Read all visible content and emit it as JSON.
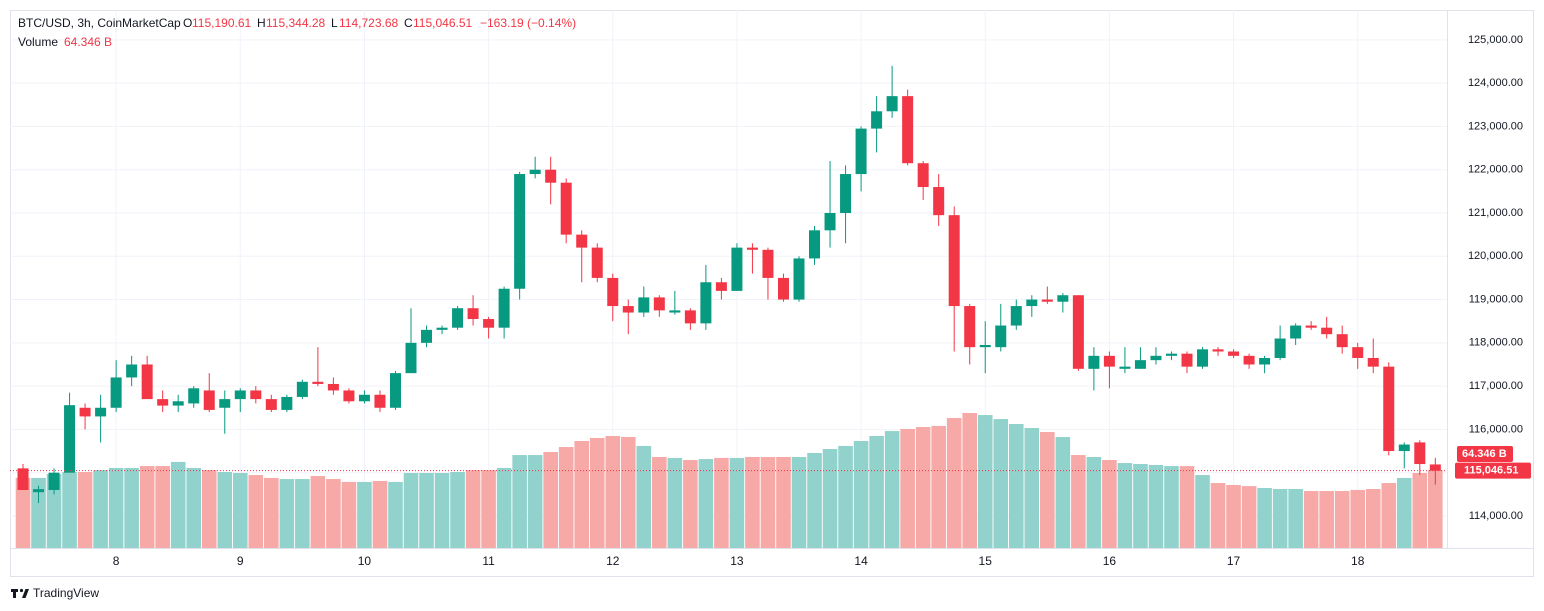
{
  "chart_data": {
    "type": "candlestick",
    "header": {
      "symbol": "BTC/USD, 3h, CoinMarketCap",
      "open_key": "O",
      "open": "115,190.61",
      "high_key": "H",
      "high": "115,344.28",
      "low_key": "L",
      "low": "114,723.68",
      "close_key": "C",
      "close": "115,046.51",
      "change": "−163.19 (−0.14%)",
      "volume_key": "Volume",
      "volume": "64.346 B"
    },
    "categories": [
      null,
      null,
      null,
      null,
      null,
      null,
      "8",
      null,
      null,
      null,
      null,
      null,
      null,
      null,
      "9",
      null,
      null,
      null,
      null,
      null,
      null,
      null,
      "10",
      null,
      null,
      null,
      null,
      null,
      null,
      null,
      "11",
      null,
      null,
      null,
      null,
      null,
      null,
      null,
      "12",
      null,
      null,
      null,
      null,
      null,
      null,
      null,
      "13",
      null,
      null,
      null,
      null,
      null,
      null,
      null,
      "14",
      null,
      null,
      null,
      null,
      null,
      null,
      null,
      "15",
      null,
      null,
      null,
      null,
      null,
      null,
      null,
      "16",
      null,
      null,
      null,
      null,
      null,
      null,
      null,
      "17",
      null,
      null,
      null,
      null,
      null,
      null,
      null,
      "18",
      null,
      null,
      null,
      null,
      null
    ],
    "open": [
      115100,
      114550,
      114600,
      115000,
      116500,
      116300,
      116500,
      117200,
      117500,
      116700,
      116550,
      116600,
      116900,
      116500,
      116700,
      116900,
      116700,
      116450,
      116750,
      117100,
      117050,
      116900,
      116650,
      116800,
      116500,
      117300,
      118000,
      118300,
      118350,
      118800,
      118550,
      118350,
      119250,
      121900,
      122000,
      121700,
      120500,
      120200,
      119500,
      118850,
      118700,
      119050,
      118700,
      118750,
      118450,
      119400,
      119200,
      120200,
      120150,
      119500,
      119000,
      119950,
      120600,
      121000,
      121900,
      122950,
      123350,
      123700,
      122150,
      121600,
      120950,
      118850,
      117900,
      117900,
      118400,
      118850,
      119000,
      118950,
      119100,
      117400,
      117700,
      117400,
      117400,
      117600,
      117700,
      117750,
      117450,
      117850,
      117800,
      117700,
      117500,
      117650,
      118100,
      118400,
      118350,
      118200,
      117900,
      117650,
      117450,
      115500,
      115700,
      115190.61
    ],
    "high": [
      115200,
      114700,
      115100,
      116850,
      116600,
      116800,
      117600,
      117700,
      117700,
      116900,
      116800,
      117000,
      117300,
      116900,
      116950,
      117000,
      116800,
      116800,
      117150,
      117900,
      117200,
      116950,
      116900,
      116900,
      117350,
      118800,
      118400,
      118400,
      118850,
      119100,
      118600,
      119300,
      121950,
      122300,
      122300,
      121800,
      120600,
      120300,
      119600,
      119000,
      119300,
      119100,
      119200,
      118800,
      119800,
      119500,
      120300,
      120300,
      120200,
      119600,
      120000,
      120700,
      122200,
      122100,
      123000,
      123700,
      124400,
      123850,
      122200,
      121900,
      121150,
      118900,
      118500,
      118900,
      119000,
      119100,
      119300,
      119150,
      119100,
      117900,
      117800,
      117900,
      117900,
      117900,
      117800,
      117800,
      117900,
      117900,
      117850,
      117750,
      117700,
      118400,
      118450,
      118500,
      118600,
      118400,
      118000,
      118100,
      117550,
      115700,
      115750,
      115344.28
    ],
    "low": [
      114600,
      114300,
      114500,
      115000,
      116000,
      115700,
      116400,
      117000,
      116700,
      116400,
      116400,
      116500,
      116400,
      115900,
      116400,
      116600,
      116400,
      116400,
      116700,
      117000,
      116800,
      116600,
      116600,
      116400,
      116450,
      117300,
      117900,
      118200,
      118300,
      118400,
      118100,
      118100,
      119000,
      121800,
      121200,
      120300,
      119400,
      119400,
      118500,
      118200,
      118600,
      118600,
      118650,
      118300,
      118300,
      119000,
      119200,
      119600,
      119000,
      118950,
      118950,
      119800,
      120200,
      120300,
      121500,
      122400,
      123200,
      122100,
      121300,
      120700,
      117800,
      117500,
      117300,
      117800,
      118300,
      118600,
      118900,
      118700,
      117350,
      116900,
      116950,
      117300,
      117400,
      117500,
      117600,
      117300,
      117400,
      117700,
      117650,
      117400,
      117300,
      117600,
      117950,
      118300,
      118100,
      117750,
      117400,
      117300,
      115400,
      115100,
      114950,
      114723.68
    ],
    "close": [
      114600,
      114620,
      115000,
      116560,
      116300,
      116500,
      117200,
      117500,
      116700,
      116550,
      116650,
      116950,
      116450,
      116700,
      116900,
      116700,
      116450,
      116750,
      117100,
      117050,
      116900,
      116650,
      116800,
      116500,
      117300,
      118000,
      118300,
      118350,
      118800,
      118550,
      118350,
      119250,
      121900,
      122000,
      121700,
      120500,
      120200,
      119500,
      118850,
      118700,
      119050,
      118750,
      118750,
      118450,
      119400,
      119200,
      120200,
      120150,
      119500,
      119000,
      119950,
      120600,
      121000,
      121900,
      122950,
      123350,
      123700,
      122150,
      121600,
      120950,
      118850,
      117900,
      117950,
      118400,
      118850,
      119000,
      118950,
      119100,
      117400,
      117700,
      117450,
      117450,
      117600,
      117700,
      117750,
      117450,
      117850,
      117800,
      117700,
      117500,
      117650,
      118100,
      118400,
      118350,
      118200,
      117900,
      117650,
      117450,
      115500,
      115650,
      115200,
      115046.51
    ],
    "volume": [
      57.8,
      57.8,
      61,
      62.7,
      62.7,
      64.3,
      66,
      66,
      67.6,
      67.6,
      71,
      66,
      64.3,
      62.7,
      61.9,
      60.2,
      57.8,
      56.9,
      56.9,
      59.4,
      56.9,
      54.5,
      54.5,
      55.3,
      54.5,
      61.9,
      61.9,
      61.9,
      62.7,
      64.3,
      64.3,
      66,
      76.7,
      76.7,
      79.2,
      83.3,
      88.3,
      90.8,
      92.4,
      91.6,
      84.2,
      75.1,
      74.3,
      72.6,
      73.4,
      74.3,
      74.3,
      75.1,
      75.1,
      75.1,
      75.1,
      78.4,
      81.7,
      84.2,
      88.3,
      92.4,
      96.5,
      98.2,
      99.8,
      100.7,
      107.3,
      111.4,
      109.7,
      106.4,
      102.3,
      99,
      95.7,
      91.6,
      76.7,
      75.1,
      72.6,
      70.1,
      69.3,
      68.5,
      67.6,
      67.6,
      60.2,
      53.6,
      52,
      51.1,
      49.5,
      48.7,
      48.7,
      47,
      47,
      47,
      47.9,
      48.7,
      53.6,
      57.8,
      61.9,
      64.346
    ],
    "last_volume_label": "64.346 B",
    "last_close_label": "115,046.51",
    "up_color": "#089981",
    "down_color": "#f23645",
    "up_volume_color": "#92d2cc",
    "down_volume_color": "#f7a9a7",
    "ylim": [
      113260,
      125690
    ],
    "yticks": [
      {
        "value": 114000,
        "label": "114,000.00"
      },
      {
        "value": 115000,
        "label": "115,000.00"
      },
      {
        "value": 116000,
        "label": "116,000.00"
      },
      {
        "value": 117000,
        "label": "117,000.00"
      },
      {
        "value": 118000,
        "label": "118,000.00"
      },
      {
        "value": 119000,
        "label": "119,000.00"
      },
      {
        "value": 120000,
        "label": "120,000.00"
      },
      {
        "value": 121000,
        "label": "121,000.00"
      },
      {
        "value": 122000,
        "label": "122,000.00"
      },
      {
        "value": 123000,
        "label": "123,000.00"
      },
      {
        "value": 124000,
        "label": "124,000.00"
      },
      {
        "value": 125000,
        "label": "125,000.00"
      }
    ],
    "grid": true,
    "brand": "TradingView"
  }
}
